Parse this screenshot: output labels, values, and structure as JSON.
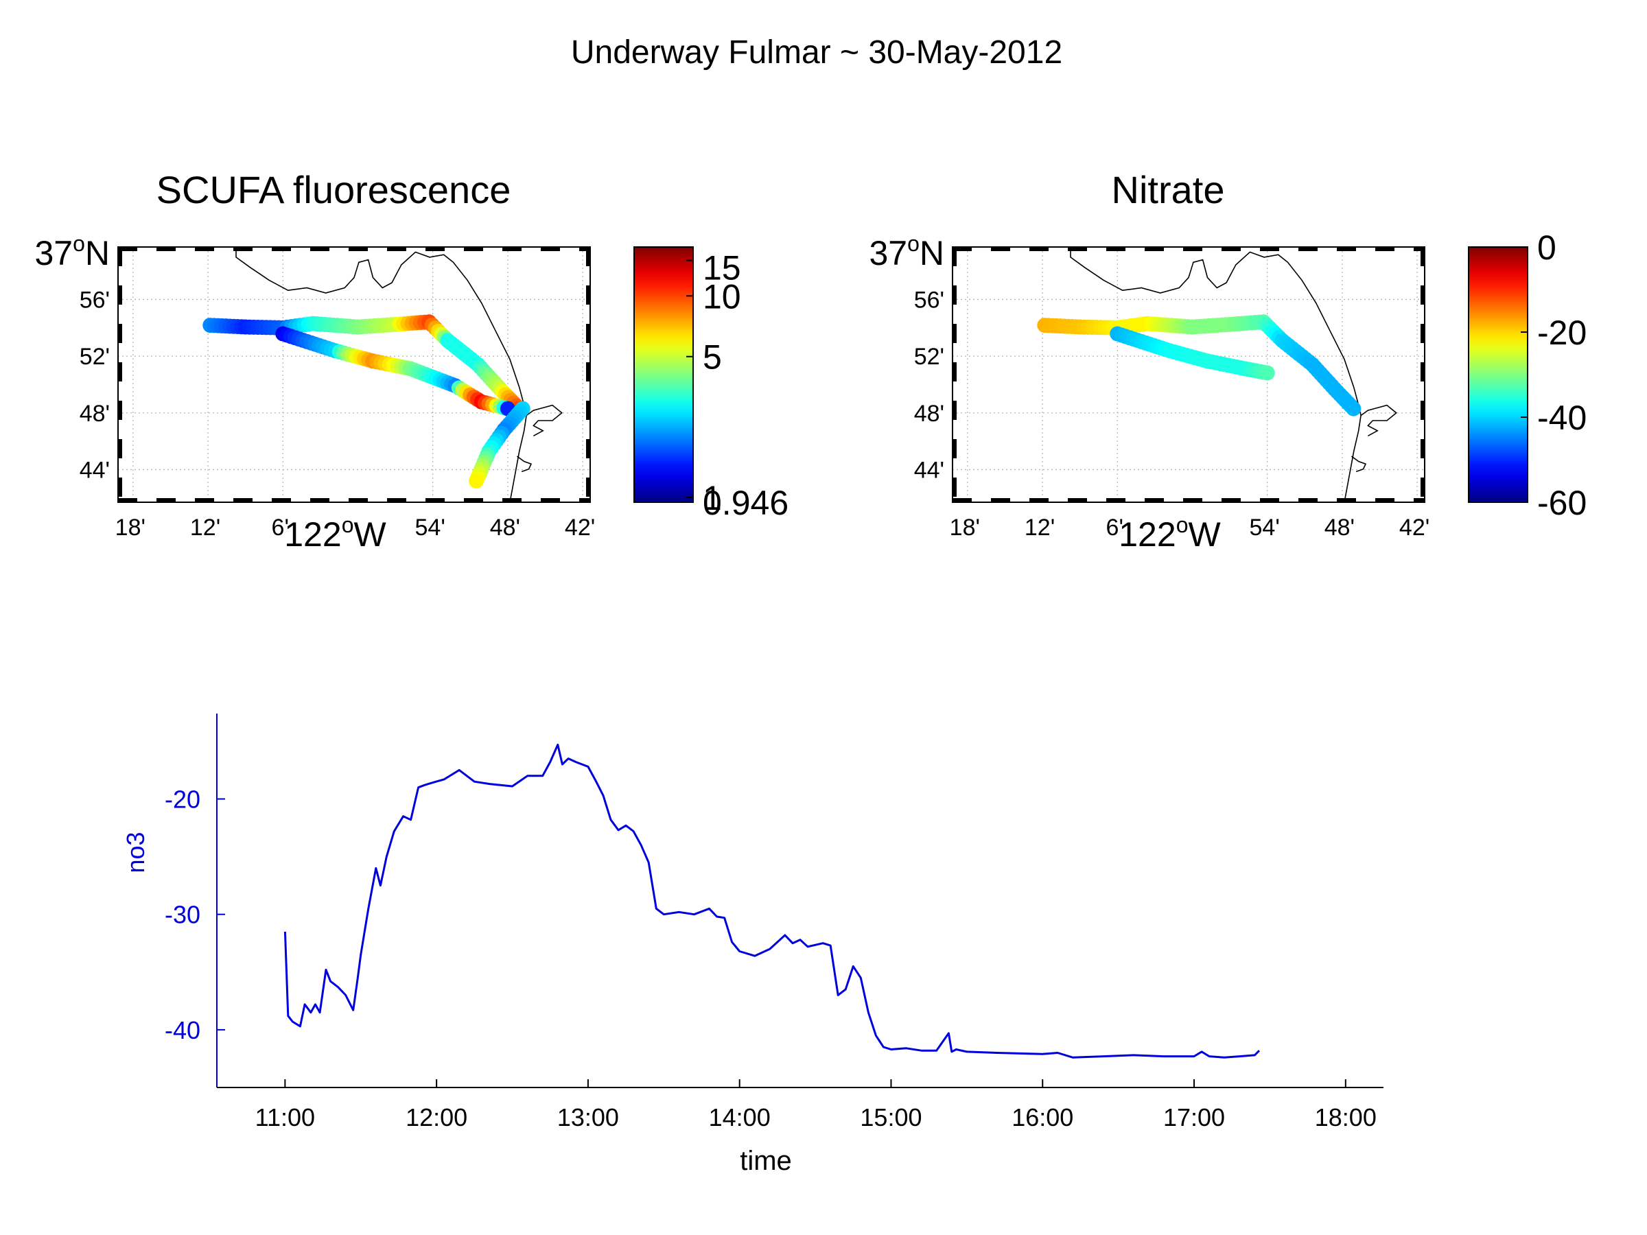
{
  "figure": {
    "title": "Underway Fulmar ~ 30-May-2012"
  },
  "colors": {
    "series_line": "#0000dd",
    "coast": "#000000",
    "grid": "#b0b0b0"
  },
  "chart_data": [
    {
      "type": "scatter",
      "title": "SCUFA fluorescence",
      "xlabel": "122°W",
      "ylabel": "37°N",
      "x_ticks": [
        "18'",
        "12'",
        "6'",
        "54'",
        "48'",
        "42'"
      ],
      "y_ticks": [
        "56'",
        "52'",
        "48'",
        "44'"
      ],
      "x_tick_values": [
        -122.3,
        -122.2,
        -122.1,
        -121.9,
        -121.8,
        -121.7
      ],
      "y_tick_values": [
        36.9333,
        36.8667,
        36.8,
        36.7333
      ],
      "xlim": [
        -122.32,
        -121.69
      ],
      "ylim": [
        36.695,
        36.995
      ],
      "grid": true,
      "colorscale": "jet",
      "color_scale": "log",
      "colorbar_ticks": [
        "15",
        "10",
        "5",
        "1",
        "0.946"
      ],
      "colorbar_tick_values": [
        15,
        10,
        5,
        1,
        0.946
      ],
      "clim": [
        0.946,
        17.5
      ],
      "track": {
        "lon": [
          -122.197,
          -122.15,
          -122.1,
          -122.06,
          -122.0,
          -121.95,
          -121.905,
          -121.88,
          -121.84,
          -121.81,
          -121.785,
          -122.1,
          -122.03,
          -121.98,
          -121.93,
          -121.87,
          -121.835,
          -121.8,
          -121.78,
          -121.805,
          -121.825,
          -121.842
        ],
        "lat": [
          36.903,
          36.901,
          36.9,
          36.905,
          36.901,
          36.904,
          36.907,
          36.885,
          36.857,
          36.828,
          36.805,
          36.893,
          36.873,
          36.861,
          36.852,
          36.832,
          36.813,
          36.805,
          36.805,
          36.78,
          36.755,
          36.72
        ],
        "value": [
          2.0,
          1.5,
          1.8,
          3.0,
          4.0,
          5.0,
          10.0,
          3.0,
          3.0,
          5.0,
          10.0,
          1.3,
          2.5,
          8.0,
          4.0,
          2.0,
          12.0,
          1.5,
          2.5,
          2.0,
          3.0,
          6.0
        ]
      }
    },
    {
      "type": "scatter",
      "title": "Nitrate",
      "xlabel": "122°W",
      "ylabel": "37°N",
      "x_ticks": [
        "18'",
        "12'",
        "6'",
        "54'",
        "48'",
        "42'"
      ],
      "y_ticks": [
        "56'",
        "52'",
        "48'",
        "44'"
      ],
      "x_tick_values": [
        -122.3,
        -122.2,
        -122.1,
        -121.9,
        -121.8,
        -121.7
      ],
      "y_tick_values": [
        36.9333,
        36.8667,
        36.8,
        36.7333
      ],
      "xlim": [
        -122.32,
        -121.69
      ],
      "ylim": [
        36.695,
        36.995
      ],
      "grid": true,
      "colorscale": "jet",
      "colorbar_ticks": [
        "0",
        "-20",
        "-40",
        "-60"
      ],
      "colorbar_tick_values": [
        0,
        -20,
        -40,
        -60
      ],
      "clim": [
        -60,
        0
      ],
      "track": {
        "lon": [
          -122.197,
          -122.15,
          -122.1,
          -122.06,
          -122.0,
          -121.95,
          -121.905,
          -121.88,
          -121.84,
          -121.81,
          -121.785,
          -122.1,
          -122.03,
          -121.98,
          -121.93,
          -121.9
        ],
        "lat": [
          36.903,
          36.901,
          36.9,
          36.905,
          36.901,
          36.904,
          36.907,
          36.885,
          36.857,
          36.828,
          36.805,
          36.893,
          36.873,
          36.861,
          36.852,
          36.847
        ],
        "value": [
          -18,
          -19,
          -22,
          -22,
          -30,
          -30,
          -33,
          -40,
          -42,
          -42,
          -42,
          -42,
          -37,
          -36,
          -36,
          -33
        ]
      }
    },
    {
      "type": "line",
      "title": "",
      "xlabel": "time",
      "ylabel": "no3",
      "x_ticks": [
        "11:00",
        "12:00",
        "13:00",
        "14:00",
        "15:00",
        "16:00",
        "17:00",
        "18:00"
      ],
      "x_tick_values": [
        11,
        12,
        13,
        14,
        15,
        16,
        17,
        18
      ],
      "y_ticks": [
        "-20",
        "-30",
        "-40"
      ],
      "y_tick_values": [
        -20,
        -30,
        -40
      ],
      "xlim": [
        10.55,
        18.25
      ],
      "ylim": [
        -45,
        -12.6
      ],
      "grid": false,
      "series": [
        {
          "x": [
            11.0,
            11.02,
            11.05,
            11.1,
            11.13,
            11.17,
            11.2,
            11.23,
            11.27,
            11.3,
            11.35,
            11.4,
            11.45,
            11.48,
            11.5,
            11.55,
            11.6,
            11.63,
            11.67,
            11.72,
            11.78,
            11.83,
            11.88,
            11.92,
            11.97,
            12.05,
            12.15,
            12.25,
            12.35,
            12.5,
            12.6,
            12.7,
            12.75,
            12.8,
            12.83,
            12.87,
            12.92,
            13.0,
            13.05,
            13.1,
            13.15,
            13.2,
            13.25,
            13.3,
            13.35,
            13.4,
            13.45,
            13.5,
            13.6,
            13.7,
            13.8,
            13.85,
            13.9,
            13.95,
            14.0,
            14.1,
            14.2,
            14.3,
            14.35,
            14.4,
            14.45,
            14.55,
            14.6,
            14.65,
            14.7,
            14.75,
            14.8,
            14.85,
            14.9,
            14.95,
            15.0,
            15.1,
            15.2,
            15.3,
            15.38,
            15.4,
            15.43,
            15.5,
            15.7,
            16.0,
            16.1,
            16.2,
            16.4,
            16.6,
            16.8,
            17.0,
            17.05,
            17.1,
            17.2,
            17.3,
            17.4,
            17.43
          ],
          "y": [
            -31.5,
            -38.8,
            -39.3,
            -39.7,
            -37.8,
            -38.5,
            -37.8,
            -38.5,
            -34.8,
            -35.8,
            -36.3,
            -37.0,
            -38.3,
            -35.5,
            -33.5,
            -29.5,
            -26.0,
            -27.5,
            -25.0,
            -22.8,
            -21.5,
            -21.8,
            -19.0,
            -18.8,
            -18.6,
            -18.3,
            -17.5,
            -18.5,
            -18.7,
            -18.9,
            -18.0,
            -18.0,
            -16.8,
            -15.3,
            -17.0,
            -16.5,
            -16.8,
            -17.2,
            -18.4,
            -19.7,
            -21.8,
            -22.7,
            -22.3,
            -22.8,
            -24.0,
            -25.5,
            -29.5,
            -30.0,
            -29.8,
            -30.0,
            -29.5,
            -30.2,
            -30.3,
            -32.4,
            -33.2,
            -33.6,
            -33.0,
            -31.8,
            -32.5,
            -32.2,
            -32.8,
            -32.5,
            -32.7,
            -37.0,
            -36.5,
            -34.5,
            -35.5,
            -38.5,
            -40.5,
            -41.5,
            -41.7,
            -41.6,
            -41.8,
            -41.8,
            -40.3,
            -41.9,
            -41.7,
            -41.9,
            -42.0,
            -42.1,
            -42.0,
            -42.4,
            -42.3,
            -42.2,
            -42.3,
            -42.3,
            -41.9,
            -42.3,
            -42.4,
            -42.3,
            -42.2,
            -41.8
          ]
        }
      ]
    }
  ]
}
